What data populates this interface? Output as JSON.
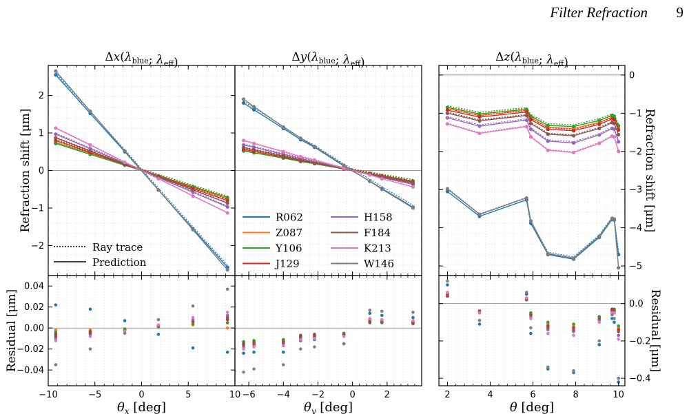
{
  "header": {
    "running_title": "Filter Refraction",
    "page_number": "9"
  },
  "colors": {
    "R062": "#1f77b4",
    "Z087": "#ff7f0e",
    "Y106": "#2ca02c",
    "J129": "#d62728",
    "H158": "#9467bd",
    "F184": "#8c564b",
    "K213": "#e377c2",
    "W146": "#7f7f7f"
  },
  "legend": {
    "bands": [
      "R062",
      "Z087",
      "Y106",
      "J129",
      "H158",
      "F184",
      "K213",
      "W146"
    ],
    "line_styles": [
      "Ray trace",
      "Prediction"
    ]
  },
  "chart_data": [
    {
      "id": "dx",
      "type": "line",
      "title": "Δx(λblue; λeff)",
      "xlabel": "θx [deg]",
      "ylabel": "Refraction shift [μm]",
      "residual_ylabel": "Residual [μm]",
      "xlim": [
        -10,
        10
      ],
      "ylim": [
        -2.8,
        2.8
      ],
      "rlim": [
        -0.055,
        0.05
      ],
      "xticks": [
        -10,
        -5,
        0,
        5,
        10
      ],
      "yticks": [
        -2,
        -1,
        0,
        1,
        2
      ],
      "rticks": [
        -0.04,
        -0.02,
        0.0,
        0.02,
        0.04
      ],
      "x": [
        -9.2,
        -5.5,
        -1.8,
        1.8,
        5.5,
        9.2
      ],
      "series": [
        {
          "name": "R062",
          "values": [
            2.55,
            1.52,
            0.5,
            -0.52,
            -1.55,
            -2.58
          ]
        },
        {
          "name": "Z087",
          "values": [
            0.75,
            0.45,
            0.15,
            -0.15,
            -0.45,
            -0.75
          ]
        },
        {
          "name": "Y106",
          "values": [
            0.72,
            0.43,
            0.14,
            -0.14,
            -0.43,
            -0.72
          ]
        },
        {
          "name": "J129",
          "values": [
            0.8,
            0.48,
            0.16,
            -0.16,
            -0.48,
            -0.8
          ]
        },
        {
          "name": "H158",
          "values": [
            0.97,
            0.58,
            0.19,
            -0.19,
            -0.58,
            -0.97
          ]
        },
        {
          "name": "F184",
          "values": [
            0.87,
            0.52,
            0.17,
            -0.17,
            -0.52,
            -0.87
          ]
        },
        {
          "name": "K213",
          "values": [
            1.13,
            0.68,
            0.22,
            -0.22,
            -0.68,
            -1.13
          ]
        },
        {
          "name": "W146",
          "values": [
            2.65,
            1.58,
            0.52,
            -0.52,
            -1.58,
            -2.65
          ]
        }
      ],
      "residuals": [
        {
          "name": "R062",
          "values": [
            0.022,
            0.018,
            0.007,
            -0.006,
            -0.019,
            -0.023
          ]
        },
        {
          "name": "Z087",
          "values": [
            -0.002,
            -0.002,
            -0.001,
            0.001,
            0.003,
            0.0
          ]
        },
        {
          "name": "Y106",
          "values": [
            -0.004,
            -0.003,
            -0.001,
            0.001,
            0.004,
            0.005
          ]
        },
        {
          "name": "J129",
          "values": [
            -0.006,
            -0.004,
            -0.002,
            0.002,
            0.006,
            0.008
          ]
        },
        {
          "name": "H158",
          "values": [
            -0.01,
            -0.006,
            -0.002,
            0.003,
            0.008,
            0.012
          ]
        },
        {
          "name": "F184",
          "values": [
            -0.008,
            -0.005,
            -0.002,
            0.002,
            0.006,
            0.01
          ]
        },
        {
          "name": "K213",
          "values": [
            -0.012,
            -0.008,
            -0.003,
            0.003,
            0.01,
            0.015
          ]
        },
        {
          "name": "W146",
          "values": [
            -0.035,
            -0.02,
            -0.005,
            0.008,
            0.021,
            0.037
          ]
        }
      ]
    },
    {
      "id": "dy",
      "type": "line",
      "title": "Δy(λblue; λeff)",
      "xlabel": "θy [deg]",
      "xlim": [
        -6.8,
        4.0
      ],
      "ylim": [
        -2.8,
        2.8
      ],
      "rlim": [
        -0.055,
        0.05
      ],
      "xticks": [
        -6,
        -4,
        -2,
        0,
        2
      ],
      "x": [
        -6.3,
        -5.7,
        -4.0,
        -3.0,
        -2.2,
        -0.5,
        1.0,
        1.7,
        3.5
      ],
      "series": [
        {
          "name": "R062",
          "values": [
            1.8,
            1.62,
            1.12,
            0.82,
            0.62,
            0.12,
            -0.28,
            -0.48,
            -0.98
          ]
        },
        {
          "name": "Z087",
          "values": [
            0.53,
            0.48,
            0.34,
            0.25,
            0.19,
            0.04,
            -0.08,
            -0.14,
            -0.29
          ]
        },
        {
          "name": "Y106",
          "values": [
            0.52,
            0.47,
            0.33,
            0.24,
            0.18,
            0.04,
            -0.08,
            -0.14,
            -0.28
          ]
        },
        {
          "name": "J129",
          "values": [
            0.56,
            0.51,
            0.36,
            0.26,
            0.2,
            0.04,
            -0.09,
            -0.15,
            -0.31
          ]
        },
        {
          "name": "H158",
          "values": [
            0.68,
            0.62,
            0.43,
            0.32,
            0.24,
            0.05,
            -0.11,
            -0.19,
            -0.37
          ]
        },
        {
          "name": "F184",
          "values": [
            0.61,
            0.55,
            0.39,
            0.28,
            0.21,
            0.04,
            -0.1,
            -0.17,
            -0.34
          ]
        },
        {
          "name": "K213",
          "values": [
            0.8,
            0.72,
            0.5,
            0.37,
            0.28,
            0.06,
            -0.12,
            -0.22,
            -0.44
          ]
        },
        {
          "name": "W146",
          "values": [
            1.9,
            1.7,
            1.16,
            0.86,
            0.64,
            0.14,
            -0.29,
            -0.5,
            -1.0
          ]
        }
      ],
      "residuals": [
        {
          "name": "R062",
          "values": [
            -0.024,
            -0.023,
            -0.023,
            -0.012,
            -0.011,
            -0.015,
            0.014,
            0.012,
            0.01
          ]
        },
        {
          "name": "Z087",
          "values": [
            -0.014,
            -0.013,
            -0.012,
            -0.007,
            -0.006,
            -0.006,
            0.006,
            0.006,
            0.005
          ]
        },
        {
          "name": "Y106",
          "values": [
            -0.013,
            -0.012,
            -0.011,
            -0.007,
            -0.006,
            -0.005,
            0.005,
            0.005,
            0.004
          ]
        },
        {
          "name": "J129",
          "values": [
            -0.015,
            -0.014,
            -0.013,
            -0.008,
            -0.007,
            -0.006,
            0.006,
            0.006,
            0.005
          ]
        },
        {
          "name": "H158",
          "values": [
            -0.018,
            -0.016,
            -0.015,
            -0.01,
            -0.009,
            -0.007,
            0.008,
            0.007,
            0.006
          ]
        },
        {
          "name": "F184",
          "values": [
            -0.016,
            -0.015,
            -0.014,
            -0.009,
            -0.008,
            -0.006,
            0.007,
            0.006,
            0.006
          ]
        },
        {
          "name": "K213",
          "values": [
            -0.02,
            -0.018,
            -0.017,
            -0.011,
            -0.01,
            -0.008,
            0.009,
            0.008,
            0.007
          ]
        },
        {
          "name": "W146",
          "values": [
            -0.042,
            -0.039,
            -0.035,
            -0.02,
            -0.018,
            -0.015,
            0.017,
            0.016,
            0.015
          ]
        }
      ]
    },
    {
      "id": "dz",
      "type": "line",
      "title": "Δz(λblue; λeff)",
      "xlabel": "θ [deg]",
      "ylabel": "Refraction shift [μm]",
      "residual_ylabel": "Residual [μm]",
      "xlim": [
        1.6,
        10.3
      ],
      "ylim": [
        -5.25,
        0.25
      ],
      "rlim": [
        -0.44,
        0.15
      ],
      "xticks": [
        2,
        4,
        6,
        8,
        10
      ],
      "yticks": [
        0,
        -1,
        -2,
        -3,
        -4,
        -5
      ],
      "rticks": [
        0.0,
        -0.2,
        -0.4
      ],
      "x": [
        2.0,
        3.5,
        5.7,
        5.9,
        6.7,
        7.9,
        9.1,
        9.7,
        9.8,
        10.0
      ],
      "series": [
        {
          "name": "R062",
          "values": [
            -3.05,
            -3.7,
            -3.27,
            -3.88,
            -4.7,
            -4.82,
            -4.25,
            -3.78,
            -3.8,
            -4.7
          ]
        },
        {
          "name": "Z087",
          "values": [
            -0.88,
            -1.06,
            -0.93,
            -1.12,
            -1.37,
            -1.4,
            -1.24,
            -1.1,
            -1.12,
            -1.38
          ]
        },
        {
          "name": "Y106",
          "values": [
            -0.85,
            -1.02,
            -0.9,
            -1.08,
            -1.32,
            -1.35,
            -1.19,
            -1.06,
            -1.08,
            -1.33
          ]
        },
        {
          "name": "J129",
          "values": [
            -0.92,
            -1.1,
            -0.97,
            -1.17,
            -1.42,
            -1.46,
            -1.29,
            -1.15,
            -1.17,
            -1.44
          ]
        },
        {
          "name": "H158",
          "values": [
            -1.12,
            -1.34,
            -1.18,
            -1.42,
            -1.73,
            -1.78,
            -1.57,
            -1.4,
            -1.42,
            -1.75
          ]
        },
        {
          "name": "F184",
          "values": [
            -1.0,
            -1.2,
            -1.06,
            -1.27,
            -1.55,
            -1.59,
            -1.4,
            -1.25,
            -1.27,
            -1.56
          ]
        },
        {
          "name": "K213",
          "values": [
            -1.28,
            -1.53,
            -1.35,
            -1.62,
            -1.97,
            -2.03,
            -1.79,
            -1.6,
            -1.62,
            -2.0
          ]
        },
        {
          "name": "W146",
          "values": [
            -2.98,
            -3.65,
            -3.22,
            -3.82,
            -4.68,
            -4.8,
            -4.22,
            -3.75,
            -3.77,
            -5.05
          ]
        }
      ],
      "residuals": [
        {
          "name": "R062",
          "values": [
            0.1,
            -0.11,
            0.05,
            -0.16,
            -0.35,
            -0.37,
            -0.22,
            -0.08,
            -0.1,
            -0.42
          ]
        },
        {
          "name": "Z087",
          "values": [
            0.04,
            -0.04,
            0.02,
            -0.05,
            -0.11,
            -0.12,
            -0.07,
            -0.03,
            -0.04,
            -0.13
          ]
        },
        {
          "name": "Y106",
          "values": [
            0.04,
            -0.04,
            0.02,
            -0.05,
            -0.1,
            -0.11,
            -0.07,
            -0.03,
            -0.03,
            -0.12
          ]
        },
        {
          "name": "J129",
          "values": [
            0.04,
            -0.04,
            0.02,
            -0.06,
            -0.12,
            -0.13,
            -0.08,
            -0.03,
            -0.04,
            -0.14
          ]
        },
        {
          "name": "H158",
          "values": [
            0.05,
            -0.05,
            0.03,
            -0.07,
            -0.14,
            -0.15,
            -0.09,
            -0.04,
            -0.05,
            -0.17
          ]
        },
        {
          "name": "F184",
          "values": [
            0.05,
            -0.04,
            0.02,
            -0.06,
            -0.13,
            -0.14,
            -0.08,
            -0.04,
            -0.04,
            -0.15
          ]
        },
        {
          "name": "K213",
          "values": [
            0.06,
            -0.05,
            0.03,
            -0.08,
            -0.16,
            -0.17,
            -0.1,
            -0.05,
            -0.05,
            -0.19
          ]
        },
        {
          "name": "W146",
          "values": [
            0.12,
            -0.09,
            0.06,
            -0.13,
            -0.34,
            -0.36,
            -0.2,
            -0.06,
            -0.08,
            -0.4
          ]
        }
      ]
    }
  ]
}
